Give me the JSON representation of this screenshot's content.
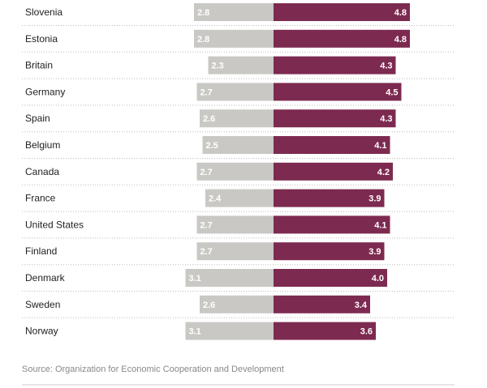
{
  "chart_data": {
    "type": "bar",
    "categories": [
      "Slovenia",
      "Estonia",
      "Britain",
      "Germany",
      "Spain",
      "Belgium",
      "Canada",
      "France",
      "United States",
      "Finland",
      "Denmark",
      "Sweden",
      "Norway"
    ],
    "series": [
      {
        "name": "left",
        "values": [
          2.8,
          2.8,
          2.3,
          2.7,
          2.6,
          2.5,
          2.7,
          2.4,
          2.7,
          2.7,
          3.1,
          2.6,
          3.1
        ],
        "labels": [
          "2.8",
          "2.8",
          "2.3",
          "2.7",
          "2.6",
          "2.5",
          "2.7",
          "2.4",
          "2.7",
          "2.7",
          "3.1",
          "2.6",
          "3.1"
        ]
      },
      {
        "name": "right",
        "values": [
          4.8,
          4.8,
          4.3,
          4.5,
          4.3,
          4.1,
          4.2,
          3.9,
          4.1,
          3.9,
          4.0,
          3.4,
          3.6
        ],
        "labels": [
          "4.8",
          "4.8",
          "4.3",
          "4.5",
          "4.3",
          "4.1",
          "4.2",
          "3.9",
          "4.1",
          "3.9",
          "4.0",
          "3.4",
          "3.6"
        ]
      }
    ],
    "colors": {
      "left": "#c9c8c4",
      "right": "#7d2a50",
      "divider": "#bbbbbb"
    },
    "source": "Source: Organization for Economic Cooperation and Development"
  }
}
